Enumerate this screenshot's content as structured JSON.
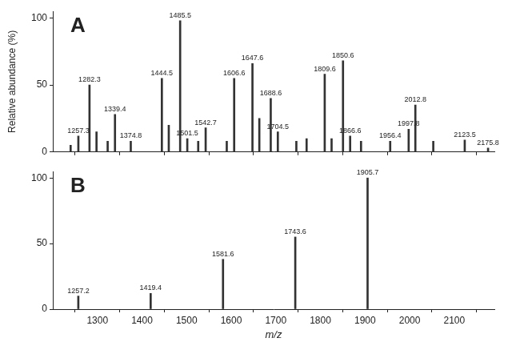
{
  "chart_data": [
    {
      "type": "bar",
      "annotations": [
        "A"
      ],
      "y_label": "Relative abundance (%)",
      "x": [
        1240,
        1257.3,
        1282.3,
        1298,
        1323,
        1339.4,
        1374.8,
        1444.5,
        1460,
        1485.5,
        1501.5,
        1526,
        1542.7,
        1590,
        1606.6,
        1647.6,
        1663,
        1688.6,
        1704.5,
        1746,
        1769,
        1809.6,
        1825,
        1850.6,
        1866.6,
        1891,
        1956.4,
        1997.8,
        2012.8,
        2053,
        2123.5,
        2175.8
      ],
      "values": [
        5,
        12,
        50,
        15,
        8,
        28,
        8,
        55,
        20,
        98,
        10,
        8,
        18,
        8,
        55,
        66,
        25,
        40,
        15,
        8,
        10,
        58,
        10,
        68,
        12,
        8,
        8,
        17,
        35,
        8,
        9,
        3
      ],
      "peak_labels": [
        null,
        "1257.3",
        "1282.3",
        null,
        null,
        "1339.4",
        "1374.8",
        "1444.5",
        null,
        "1485.5",
        "1501.5",
        null,
        "1542.7",
        null,
        "1606.6",
        "1647.6",
        null,
        "1688.6",
        "1704.5",
        null,
        null,
        "1809.6",
        null,
        "1850.6",
        "1866.6",
        null,
        "1956.4",
        "1997.8",
        "2012.8",
        null,
        "2123.5",
        "2175.8"
      ],
      "color": "#333333",
      "xlim": [
        1200,
        2190
      ],
      "xticks": [
        1300,
        1400,
        1500,
        1600,
        1700,
        1800,
        1900,
        2000,
        2100
      ],
      "ylim": [
        0,
        105
      ],
      "yticks": [
        0,
        50,
        100
      ],
      "tick_labels": "y",
      "grid": false
    },
    {
      "type": "bar",
      "annotations": [
        "B"
      ],
      "x_label": "m/z",
      "x": [
        1257.2,
        1419.4,
        1581.6,
        1743.6,
        1905.7
      ],
      "values": [
        10,
        12,
        38,
        55,
        100
      ],
      "peak_labels": [
        "1257.2",
        "1419.4",
        "1581.6",
        "1743.6",
        "1905.7"
      ],
      "color": "#333333",
      "xlim": [
        1200,
        2190
      ],
      "xticks": [
        1300,
        1400,
        1500,
        1600,
        1700,
        1800,
        1900,
        2000,
        2100
      ],
      "ylim": [
        0,
        105
      ],
      "yticks": [
        0,
        50,
        100
      ],
      "grid": false
    }
  ]
}
